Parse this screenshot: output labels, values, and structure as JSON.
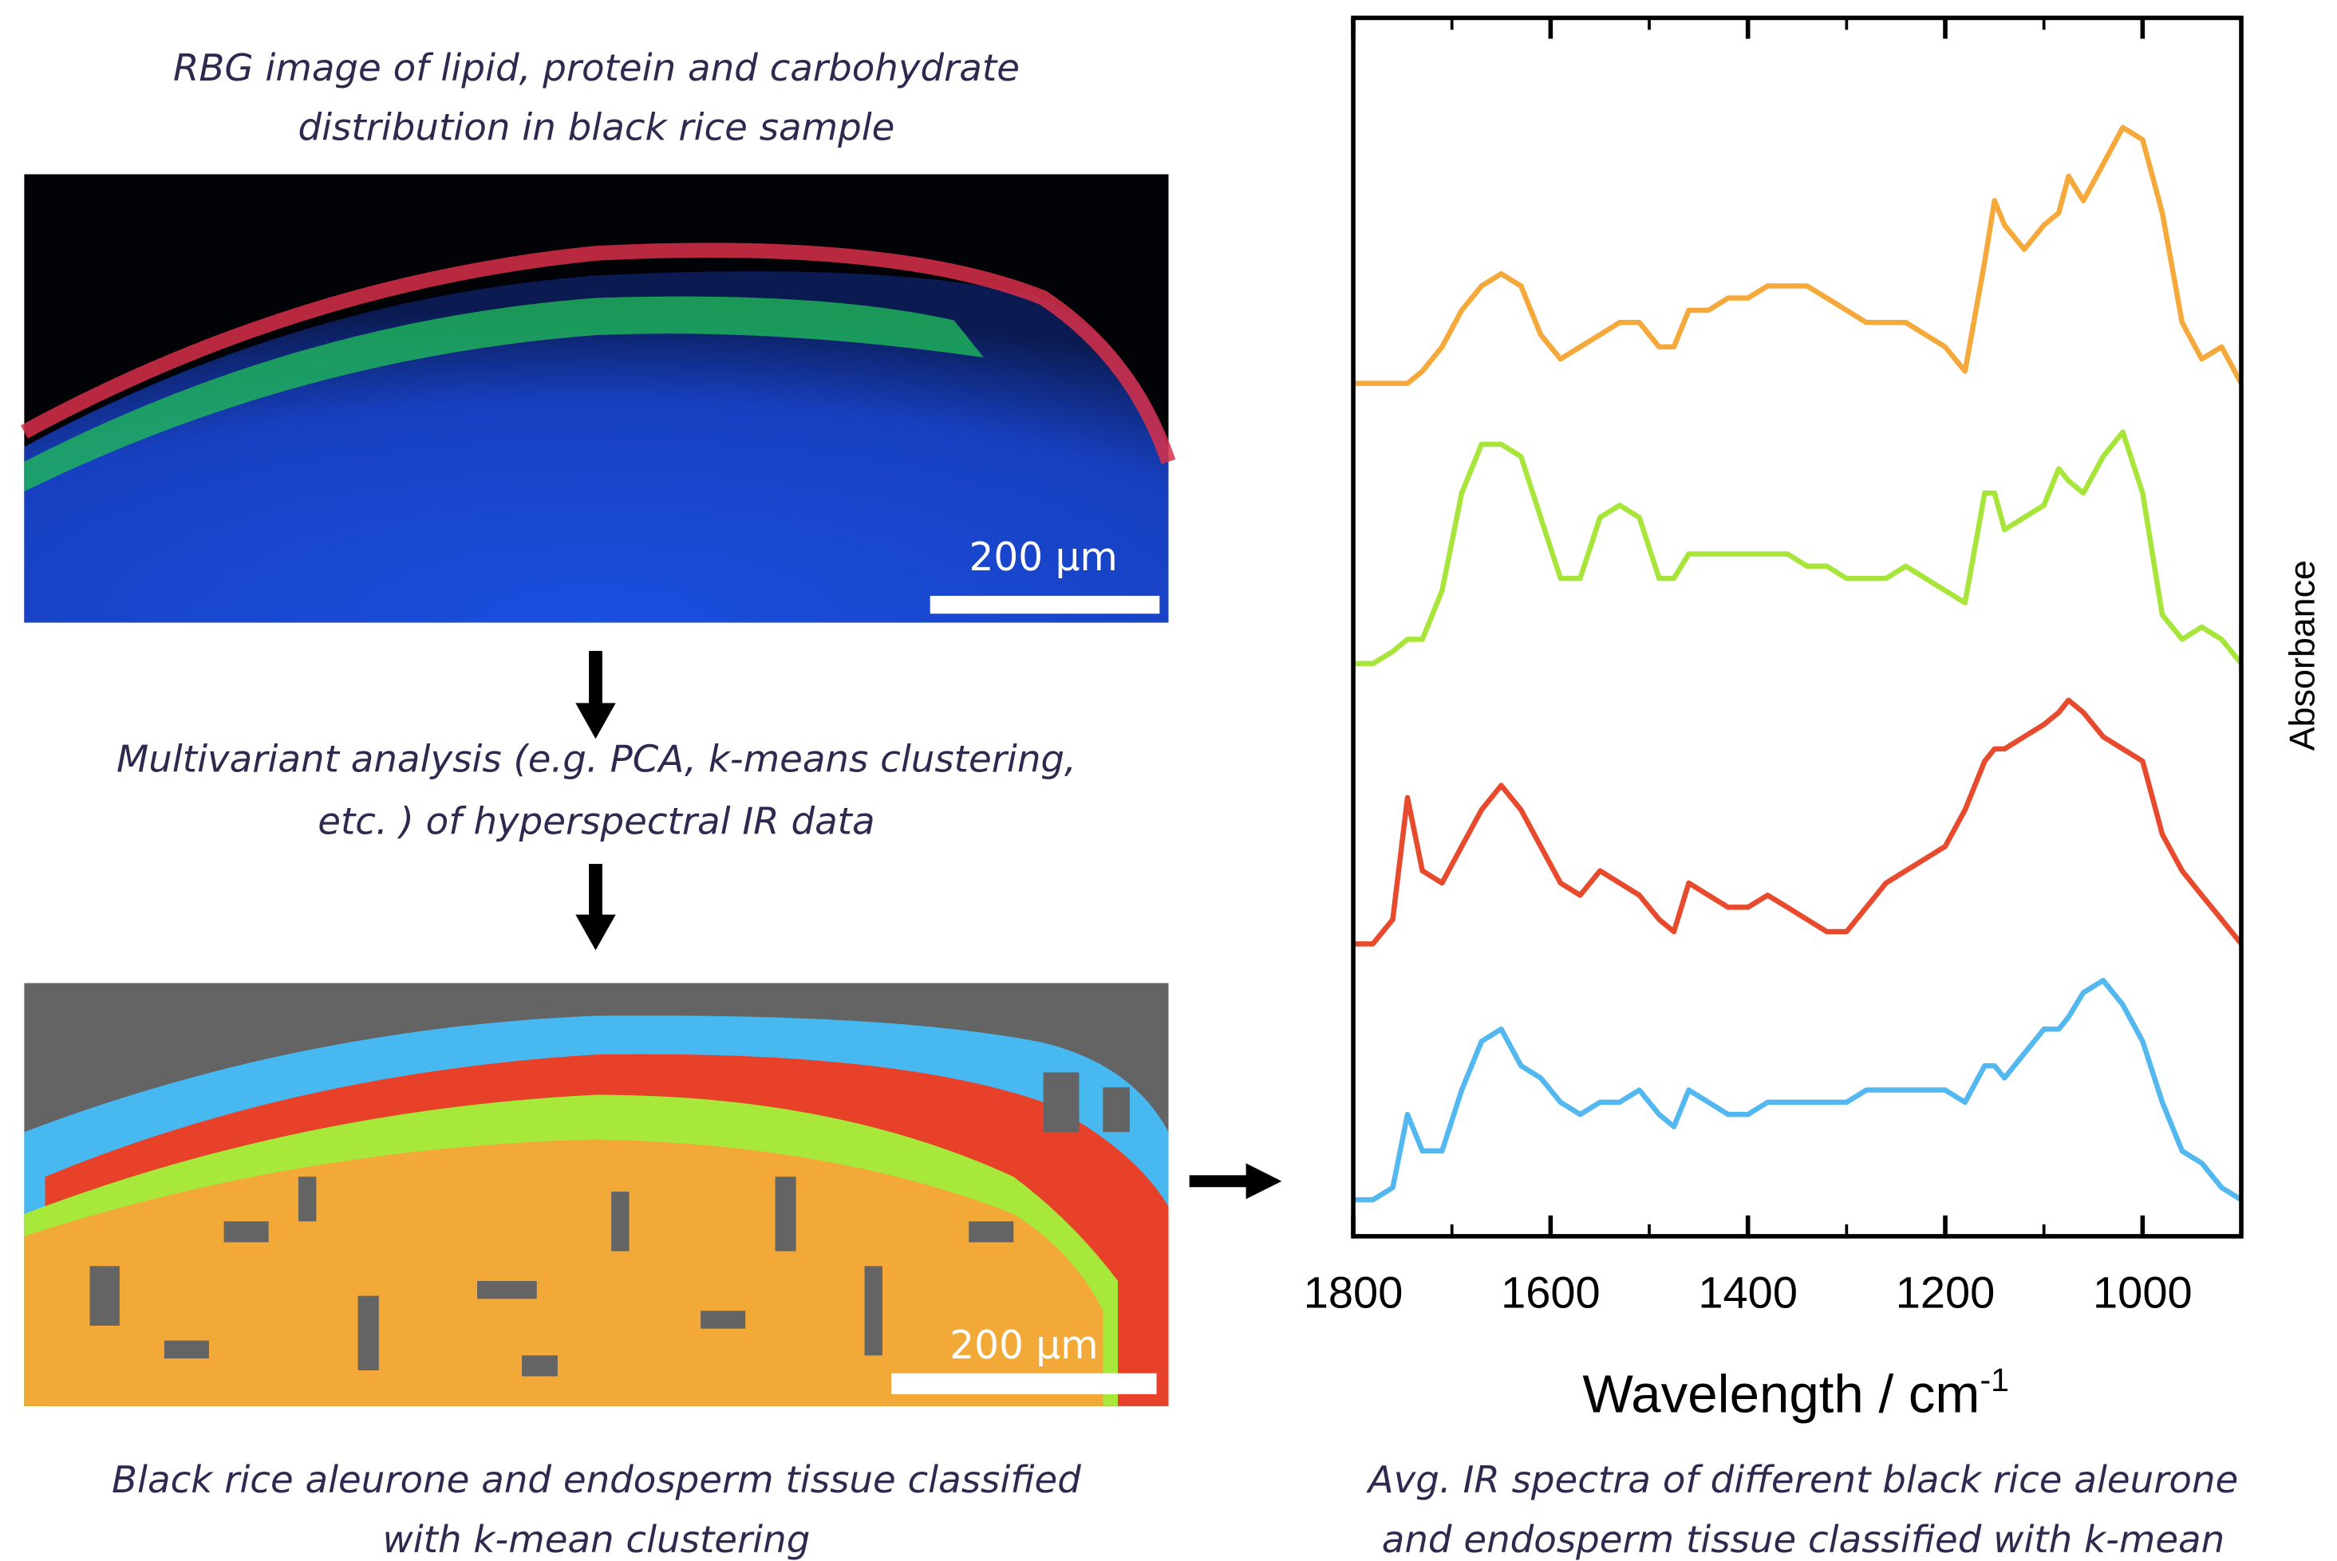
{
  "rgb_caption": [
    "RBG image of lipid, protein and carbohydrate",
    "distribution in black rice sample"
  ],
  "rgb_scale_bar": "200 µm",
  "analysis_caption": [
    "Multivariant analysis (e.g. PCA, k-means clustering,",
    "etc. ) of hyperspectral IR data"
  ],
  "cluster_scale_bar": "200 µm",
  "cluster_caption": [
    "Black rice aleurone and endosperm tissue classified",
    "with k-mean clustering"
  ],
  "chart_data": {
    "type": "line",
    "x_label": {
      "text": "Wavelength / cm",
      "superscript": "-1"
    },
    "y_label": "Absorbance",
    "caption": [
      "Avg. IR spectra of different black rice aleurone",
      "and endosperm tissue classified with k-mean"
    ],
    "xlim": [
      1800,
      900
    ],
    "xticks": [
      1800,
      1600,
      1400,
      1200,
      1000
    ],
    "minor_xticks": [
      1700,
      1500,
      1300,
      1100
    ],
    "ylim": [
      0,
      100
    ],
    "x": [
      1800,
      1780,
      1760,
      1745,
      1730,
      1710,
      1690,
      1670,
      1650,
      1630,
      1610,
      1590,
      1570,
      1550,
      1530,
      1510,
      1490,
      1475,
      1460,
      1440,
      1420,
      1400,
      1380,
      1360,
      1340,
      1320,
      1300,
      1280,
      1260,
      1240,
      1220,
      1200,
      1180,
      1160,
      1150,
      1140,
      1120,
      1100,
      1085,
      1075,
      1060,
      1040,
      1020,
      1000,
      980,
      960,
      940,
      920,
      900
    ],
    "series": [
      {
        "color": "#f4a93a",
        "values": [
          70,
          70,
          70,
          70,
          71,
          73,
          76,
          78,
          79,
          78,
          74,
          72,
          73,
          74,
          75,
          75,
          73,
          73,
          76,
          76,
          77,
          77,
          78,
          78,
          78,
          77,
          76,
          75,
          75,
          75,
          74,
          73,
          71,
          80,
          85,
          83,
          81,
          83,
          84,
          87,
          85,
          88,
          91,
          90,
          84,
          75,
          72,
          73,
          70
        ]
      },
      {
        "color": "#a8e53a",
        "values": [
          47,
          47,
          48,
          49,
          49,
          53,
          61,
          65,
          65,
          64,
          59,
          54,
          54,
          59,
          60,
          59,
          54,
          54,
          56,
          56,
          56,
          56,
          56,
          56,
          55,
          55,
          54,
          54,
          54,
          55,
          54,
          53,
          52,
          61,
          61,
          58,
          59,
          60,
          63,
          62,
          61,
          64,
          66,
          61,
          51,
          49,
          50,
          49,
          47
        ]
      },
      {
        "color": "#e84a2e",
        "values": [
          24,
          24,
          26,
          36,
          30,
          29,
          32,
          35,
          37,
          35,
          32,
          29,
          28,
          30,
          29,
          28,
          26,
          25,
          29,
          28,
          27,
          27,
          28,
          27,
          26,
          25,
          25,
          27,
          29,
          30,
          31,
          32,
          35,
          39,
          40,
          40,
          41,
          42,
          43,
          44,
          43,
          41,
          40,
          39,
          33,
          30,
          28,
          26,
          24
        ]
      },
      {
        "color": "#52b8ef",
        "values": [
          3,
          3,
          4,
          10,
          7,
          7,
          12,
          16,
          17,
          14,
          13,
          11,
          10,
          11,
          11,
          12,
          10,
          9,
          12,
          11,
          10,
          10,
          11,
          11,
          11,
          11,
          11,
          12,
          12,
          12,
          12,
          12,
          11,
          14,
          14,
          13,
          15,
          17,
          17,
          18,
          20,
          21,
          19,
          16,
          11,
          7,
          6,
          4,
          3
        ]
      }
    ]
  }
}
